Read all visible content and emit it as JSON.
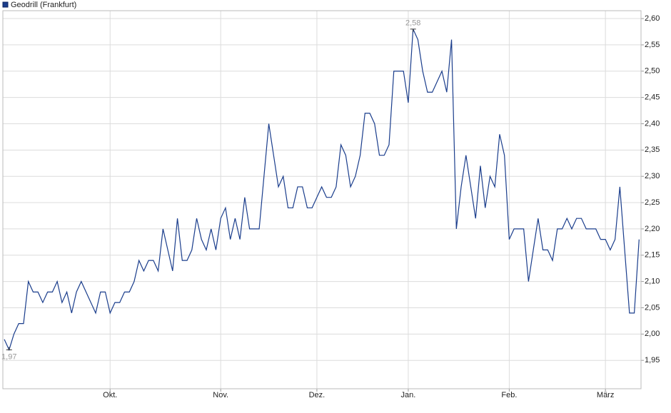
{
  "chart_data": {
    "type": "line",
    "series": [
      {
        "name": "Geodrill (Frankfurt)",
        "color": "#1a3d8c",
        "values": [
          1.99,
          1.97,
          2.0,
          2.02,
          2.02,
          2.1,
          2.08,
          2.08,
          2.06,
          2.08,
          2.08,
          2.1,
          2.06,
          2.08,
          2.04,
          2.08,
          2.1,
          2.08,
          2.06,
          2.04,
          2.08,
          2.08,
          2.04,
          2.06,
          2.06,
          2.08,
          2.08,
          2.1,
          2.14,
          2.12,
          2.14,
          2.14,
          2.12,
          2.2,
          2.16,
          2.12,
          2.22,
          2.14,
          2.14,
          2.16,
          2.22,
          2.18,
          2.16,
          2.2,
          2.16,
          2.22,
          2.24,
          2.18,
          2.22,
          2.18,
          2.26,
          2.2,
          2.2,
          2.2,
          2.3,
          2.4,
          2.34,
          2.28,
          2.3,
          2.24,
          2.24,
          2.28,
          2.28,
          2.24,
          2.24,
          2.26,
          2.28,
          2.26,
          2.26,
          2.28,
          2.36,
          2.34,
          2.28,
          2.3,
          2.34,
          2.42,
          2.42,
          2.4,
          2.34,
          2.34,
          2.36,
          2.5,
          2.5,
          2.5,
          2.44,
          2.58,
          2.56,
          2.5,
          2.46,
          2.46,
          2.48,
          2.5,
          2.46,
          2.56,
          2.2,
          2.28,
          2.34,
          2.28,
          2.22,
          2.32,
          2.24,
          2.3,
          2.28,
          2.38,
          2.34,
          2.18,
          2.2,
          2.2,
          2.2,
          2.1,
          2.16,
          2.22,
          2.16,
          2.16,
          2.14,
          2.2,
          2.2,
          2.22,
          2.2,
          2.22,
          2.22,
          2.2,
          2.2,
          2.2,
          2.18,
          2.18,
          2.16,
          2.18,
          2.28,
          2.16,
          2.04,
          2.04,
          2.18
        ]
      }
    ],
    "annotations": [
      {
        "x": 85,
        "value": 2.58,
        "label": "2,58"
      },
      {
        "x": 1,
        "value": 1.97,
        "label": "1,97"
      }
    ],
    "xlim": [
      -0.3,
      132.4
    ],
    "xticks": [
      {
        "value": 22,
        "label": "Okt."
      },
      {
        "value": 45,
        "label": "Nov."
      },
      {
        "value": 65,
        "label": "Dez."
      },
      {
        "value": 84,
        "label": "Jan."
      },
      {
        "value": 105,
        "label": "Feb."
      },
      {
        "value": 125,
        "label": "März"
      }
    ],
    "ylim": [
      1.896,
      2.615
    ],
    "yticks": [
      {
        "value": 1.95,
        "label": "1,95"
      },
      {
        "value": 2.0,
        "label": "2,00"
      },
      {
        "value": 2.05,
        "label": "2,05"
      },
      {
        "value": 2.1,
        "label": "2,10"
      },
      {
        "value": 2.15,
        "label": "2,15"
      },
      {
        "value": 2.2,
        "label": "2,20"
      },
      {
        "value": 2.25,
        "label": "2,25"
      },
      {
        "value": 2.3,
        "label": "2,30"
      },
      {
        "value": 2.35,
        "label": "2,35"
      },
      {
        "value": 2.4,
        "label": "2,40"
      },
      {
        "value": 2.45,
        "label": "2,45"
      },
      {
        "value": 2.5,
        "label": "2,50"
      },
      {
        "value": 2.55,
        "label": "2,55"
      },
      {
        "value": 2.6,
        "label": "2,60"
      }
    ],
    "grid": true
  }
}
